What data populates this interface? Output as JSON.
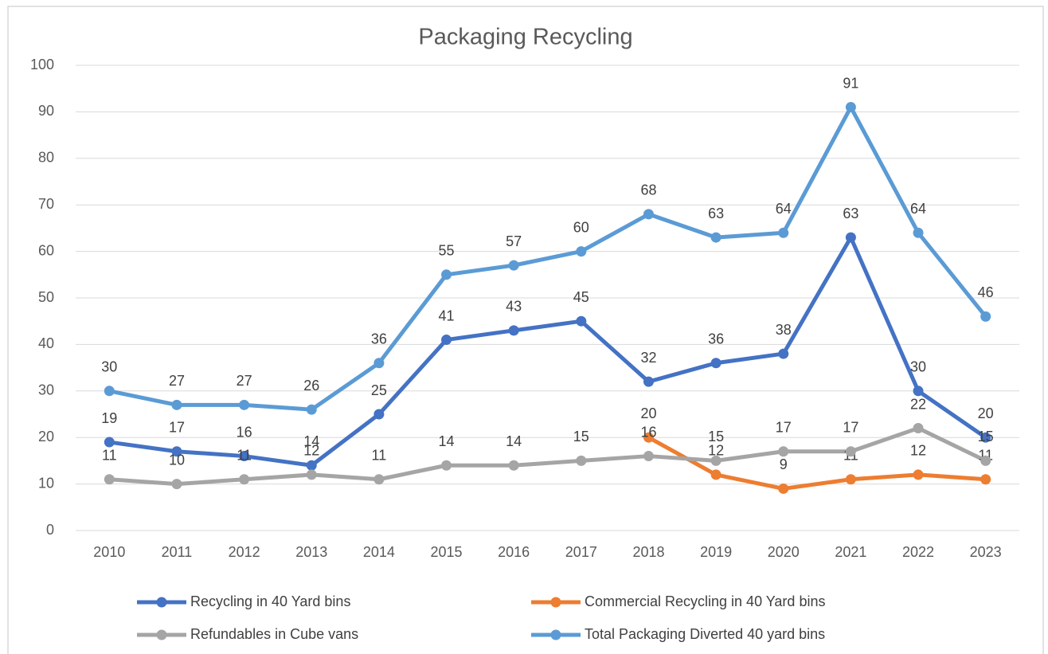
{
  "chart_data": {
    "type": "line",
    "title": "Packaging Recycling",
    "categories": [
      "2010",
      "2011",
      "2012",
      "2013",
      "2014",
      "2015",
      "2016",
      "2017",
      "2018",
      "2019",
      "2020",
      "2021",
      "2022",
      "2023"
    ],
    "series": [
      {
        "name": "Recycling in 40 Yard bins",
        "color": "#4472c4",
        "values": [
          19,
          17,
          16,
          14,
          25,
          41,
          43,
          45,
          32,
          36,
          38,
          63,
          30,
          20
        ]
      },
      {
        "name": "Commercial Recycling in 40 Yard bins",
        "color": "#ed7d31",
        "values": [
          null,
          null,
          null,
          null,
          null,
          null,
          null,
          null,
          20,
          12,
          9,
          11,
          12,
          11
        ]
      },
      {
        "name": "Refundables in Cube vans",
        "color": "#a5a5a5",
        "values": [
          11,
          10,
          11,
          12,
          11,
          14,
          14,
          15,
          16,
          15,
          17,
          17,
          22,
          15
        ]
      },
      {
        "name": "Total Packaging Diverted 40 yard bins",
        "color": "#5b9bd5",
        "values": [
          30,
          27,
          27,
          26,
          36,
          55,
          57,
          60,
          68,
          63,
          64,
          91,
          64,
          46
        ]
      }
    ],
    "ylim": [
      0,
      100
    ],
    "yticks": [
      0,
      10,
      20,
      30,
      40,
      50,
      60,
      70,
      80,
      90,
      100
    ],
    "grid": true,
    "legend": "bottom"
  }
}
